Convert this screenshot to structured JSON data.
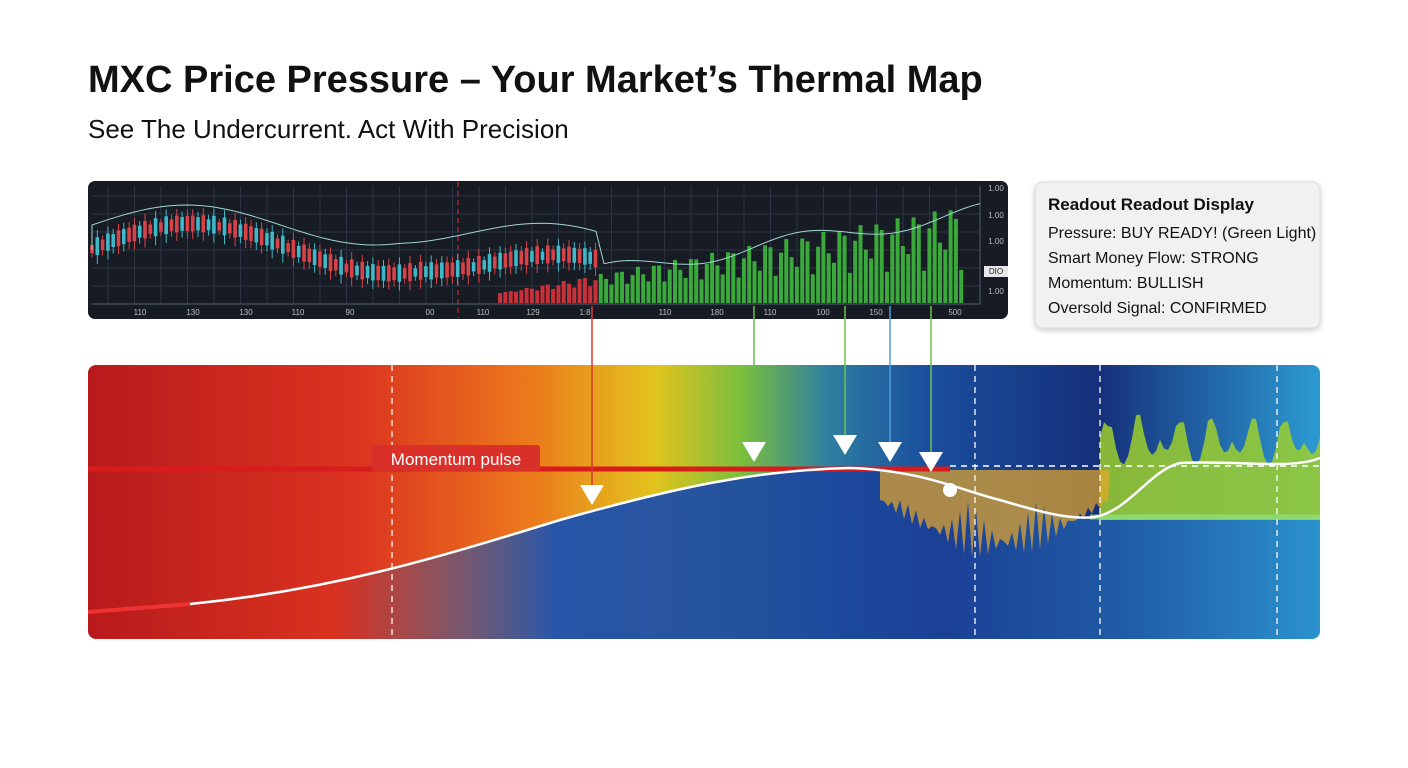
{
  "header": {
    "title": "MXC Price Pressure – Your Market’s Thermal Map",
    "subtitle": "See The Undercurrent. Act With Precision"
  },
  "price_chart": {
    "x_labels": [
      "110",
      "130",
      "130",
      "110",
      "90",
      "00",
      "110",
      "129",
      "1:8",
      "110",
      "180",
      "110",
      "100",
      "150",
      "500"
    ],
    "y_labels": [
      "1.00",
      "1.00",
      "1.00",
      "DIO",
      "1.00"
    ]
  },
  "readout": {
    "title": "Readout Readout Display",
    "lines": [
      "Pressure: BUY READY! (Green Light)",
      "Smart Money Flow: STRONG",
      "Momentum: BULLISH",
      "Oversold Signal: CONFIRMED"
    ]
  },
  "thermal_map": {
    "label": "Momentum pulse"
  }
}
